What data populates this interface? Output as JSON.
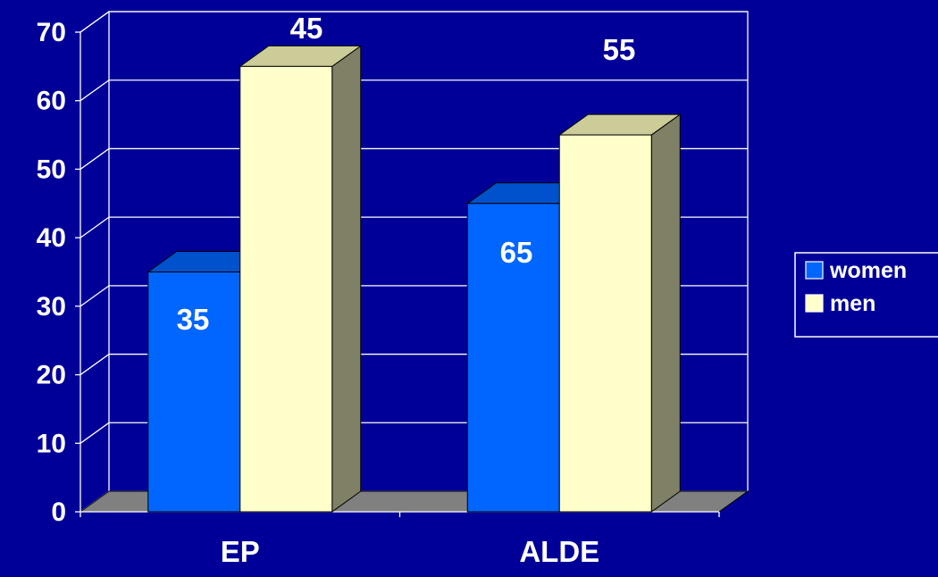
{
  "chart_data": {
    "type": "bar",
    "title": "",
    "xlabel": "",
    "ylabel": "",
    "categories": [
      "EP",
      "ALDE"
    ],
    "series": [
      {
        "name": "women",
        "values": [
          35,
          45
        ],
        "value_labels": [
          "35",
          "45"
        ]
      },
      {
        "name": "men",
        "values": [
          65,
          55
        ],
        "value_labels": [
          "65",
          "55"
        ]
      }
    ],
    "ylim": [
      0,
      70
    ],
    "yticks": [
      "0",
      "10",
      "20",
      "30",
      "40",
      "50",
      "60",
      "70"
    ],
    "grid": true,
    "three_d": true,
    "legend_position": "right",
    "colors": {
      "background": "#000099",
      "women_front": "#0066FF",
      "women_top": "#0052CC",
      "women_side": "#003D99",
      "men_front": "#FFFFCC",
      "men_top": "#CCCC99",
      "men_side": "#808066",
      "floor": "#808080",
      "grid": "#FFFFFF",
      "text": "#FFFFFF"
    }
  }
}
